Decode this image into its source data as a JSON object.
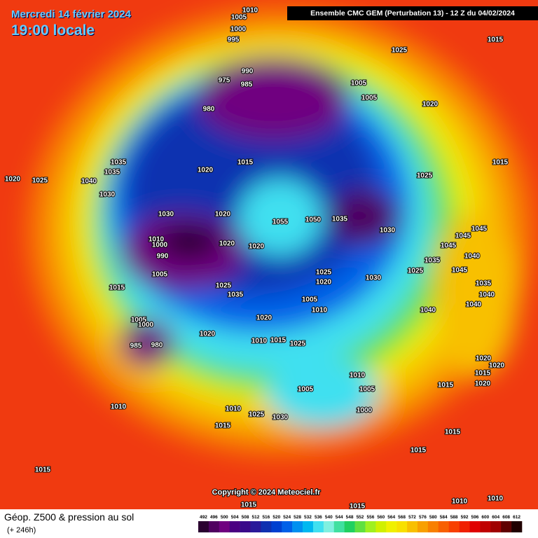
{
  "header": {
    "date": "Mercredi 14 février 2024",
    "time": "19:00 locale",
    "model": "Ensemble CMC GEM  (Perturbation 13)  -  12 Z du 04/02/2024"
  },
  "copyright": "Copyright © 2024 Meteociel.fr",
  "footer": {
    "title": "Géop. Z500 & pression au sol",
    "lead": "(+ 246h)"
  },
  "isobar_labels": [
    "1010",
    "1005",
    "1000",
    "995",
    "990",
    "975",
    "985",
    "980",
    "1005",
    "1005",
    "1025",
    "1015",
    "1020",
    "1015",
    "1020",
    "1035",
    "1035",
    "1040",
    "1030",
    "1025",
    "1020",
    "1025",
    "1015",
    "1030",
    "1020",
    "1055",
    "1050",
    "1035",
    "1030",
    "1045",
    "1045",
    "1045",
    "1040",
    "1035",
    "1045",
    "1010",
    "1000",
    "990",
    "1020",
    "1020",
    "1005",
    "1025",
    "1020",
    "1030",
    "1025",
    "1015",
    "1025",
    "1035",
    "1005",
    "1010",
    "1040",
    "1035",
    "1040",
    "1040",
    "1020",
    "1005",
    "1000",
    "1020",
    "1010",
    "1015",
    "1025",
    "985",
    "980",
    "1020",
    "1020",
    "1015",
    "1020",
    "1010",
    "1005",
    "1005",
    "1015",
    "1010",
    "1010",
    "1025",
    "1030",
    "1000",
    "1015",
    "1015",
    "1015",
    "1015",
    "1010",
    "1010",
    "1015",
    "1015"
  ],
  "legend": {
    "values": [
      492,
      496,
      500,
      504,
      508,
      512,
      516,
      520,
      524,
      528,
      532,
      536,
      540,
      544,
      548,
      552,
      556,
      560,
      564,
      568,
      572,
      576,
      580,
      584,
      588,
      592,
      596,
      600,
      604,
      608,
      612
    ],
    "colors": [
      "#2a0030",
      "#500060",
      "#700080",
      "#4b0082",
      "#3a0a8a",
      "#2a1a9a",
      "#1030b0",
      "#0040d0",
      "#0060e8",
      "#0090f0",
      "#00b8f0",
      "#40e0f0",
      "#80f0e0",
      "#40e0a0",
      "#20d060",
      "#60e040",
      "#a0f020",
      "#d0f000",
      "#f0f000",
      "#f8e000",
      "#f8c000",
      "#f8a000",
      "#f88000",
      "#f86000",
      "#f84000",
      "#f02000",
      "#e00000",
      "#c00000",
      "#a00000",
      "#600000",
      "#200000"
    ]
  }
}
